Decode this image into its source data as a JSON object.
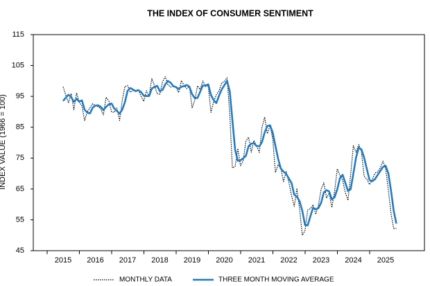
{
  "chart_data": {
    "type": "line",
    "title": "THE INDEX OF CONSUMER SENTIMENT",
    "y_label": "INDEX VALUE (1966 = 100)",
    "categories": [
      "2015",
      null,
      null,
      null,
      null,
      null,
      null,
      null,
      null,
      null,
      null,
      null,
      "2016",
      null,
      null,
      null,
      null,
      null,
      null,
      null,
      null,
      null,
      null,
      null,
      "2017",
      null,
      null,
      null,
      null,
      null,
      null,
      null,
      null,
      null,
      null,
      null,
      "2018",
      null,
      null,
      null,
      null,
      null,
      null,
      null,
      null,
      null,
      null,
      null,
      "2019",
      null,
      null,
      null,
      null,
      null,
      null,
      null,
      null,
      null,
      null,
      null,
      "2020",
      null,
      null,
      null,
      null,
      null,
      null,
      null,
      null,
      null,
      null,
      null,
      "2021",
      null,
      null,
      null,
      null,
      null,
      null,
      null,
      null,
      null,
      null,
      null,
      "2022",
      null,
      null,
      null,
      null,
      null,
      null,
      null,
      null,
      null,
      null,
      null,
      "2023",
      null,
      null,
      null,
      null,
      null,
      null,
      null,
      null,
      null,
      null,
      null,
      "2024",
      null,
      null,
      null,
      null,
      null,
      null,
      null,
      null,
      null,
      null,
      null,
      "2025",
      null,
      null,
      null,
      null
    ],
    "series": [
      {
        "name": "MONTHLY DATA",
        "color": "#000000",
        "style": "dotted",
        "values": [
          98.1,
          95.4,
          93.0,
          95.9,
          90.7,
          96.1,
          93.1,
          91.9,
          87.2,
          90.0,
          91.3,
          92.6,
          92.0,
          91.7,
          91.0,
          89.0,
          94.7,
          93.5,
          90.0,
          89.8,
          91.2,
          87.2,
          93.8,
          98.2,
          98.5,
          96.3,
          96.9,
          97.0,
          97.1,
          95.0,
          93.4,
          96.8,
          95.1,
          100.7,
          98.5,
          95.9,
          95.7,
          99.7,
          101.4,
          98.8,
          98.0,
          98.2,
          97.9,
          96.2,
          100.1,
          98.6,
          97.5,
          98.3,
          91.2,
          93.8,
          98.4,
          97.2,
          100.0,
          98.2,
          98.4,
          89.8,
          93.2,
          95.5,
          96.8,
          99.3,
          99.8,
          101.0,
          89.1,
          71.8,
          72.3,
          78.1,
          72.5,
          74.1,
          80.4,
          81.8,
          76.9,
          80.7,
          79.0,
          76.8,
          84.9,
          88.3,
          82.9,
          85.5,
          81.2,
          70.3,
          72.8,
          71.7,
          67.4,
          70.6,
          67.2,
          62.8,
          59.4,
          65.2,
          58.4,
          50.0,
          51.5,
          58.2,
          58.6,
          59.9,
          56.8,
          59.7,
          64.9,
          67.0,
          62.0,
          63.7,
          59.0,
          64.2,
          71.5,
          69.4,
          67.9,
          63.8,
          61.3,
          69.7,
          79.0,
          76.9,
          79.4,
          77.2,
          69.1,
          68.2,
          66.4,
          67.9,
          70.1,
          70.5,
          71.8,
          74.0,
          71.7,
          64.7,
          57.0,
          52.2,
          52.2
        ]
      },
      {
        "name": "THREE MONTH MOVING AVERAGE",
        "color": "#1f7cc4",
        "style": "solid",
        "values": [
          93.5,
          94.6,
          95.5,
          94.8,
          93.2,
          94.2,
          93.3,
          93.7,
          90.7,
          89.7,
          89.5,
          91.3,
          92.0,
          92.1,
          91.6,
          90.6,
          91.6,
          92.4,
          92.7,
          91.1,
          90.3,
          89.4,
          90.7,
          93.1,
          96.8,
          97.7,
          97.2,
          96.7,
          97.0,
          96.4,
          95.2,
          95.1,
          95.1,
          97.5,
          98.1,
          98.4,
          96.7,
          97.1,
          98.9,
          100.0,
          99.4,
          98.3,
          98.0,
          97.4,
          98.1,
          98.3,
          98.7,
          98.1,
          95.7,
          94.4,
          94.5,
          96.5,
          98.5,
          98.5,
          98.9,
          95.5,
          93.8,
          92.8,
          95.2,
          97.2,
          98.6,
          100.0,
          96.6,
          87.3,
          77.7,
          74.1,
          74.3,
          74.9,
          75.7,
          78.8,
          79.7,
          79.8,
          78.9,
          78.8,
          80.2,
          83.3,
          85.4,
          85.6,
          83.2,
          79.0,
          74.8,
          71.6,
          70.6,
          69.9,
          68.4,
          66.9,
          63.1,
          62.5,
          61.0,
          57.9,
          53.3,
          53.2,
          56.1,
          58.9,
          58.4,
          58.8,
          60.5,
          63.9,
          64.6,
          64.2,
          61.6,
          62.3,
          64.9,
          68.4,
          69.6,
          67.0,
          64.3,
          64.9,
          70.0,
          75.2,
          78.4,
          77.8,
          75.2,
          71.5,
          67.9,
          67.5,
          68.1,
          69.5,
          70.8,
          72.1,
          72.5,
          70.1,
          64.5,
          58.0,
          53.8
        ]
      }
    ],
    "ylim": [
      45,
      115
    ],
    "yticks": [
      45,
      55,
      65,
      75,
      85,
      95,
      105,
      115
    ],
    "grid": false,
    "legend": "bottom"
  }
}
